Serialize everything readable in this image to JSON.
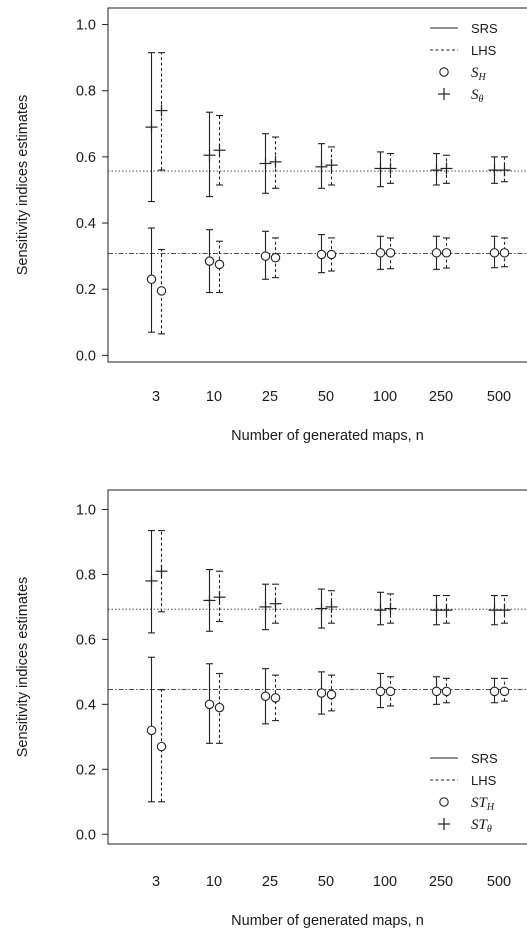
{
  "chart_data": [
    {
      "type": "errorbar",
      "xlabel": "Number of generated maps, n",
      "ylabel": "Sensitivity indices estimates",
      "categories": [
        "3",
        "10",
        "25",
        "50",
        "100",
        "250",
        "500"
      ],
      "ylim": [
        -0.02,
        1.05
      ],
      "yticks": [
        "0.0",
        "0.2",
        "0.4",
        "0.6",
        "0.8",
        "1.0"
      ],
      "reference_lines": [
        0.557,
        0.308
      ],
      "legend_position": "top-right",
      "legend": [
        {
          "symbol": "line",
          "label": "SRS"
        },
        {
          "symbol": "dash",
          "label": "LHS"
        },
        {
          "symbol": "circle",
          "label": "S",
          "sub": "H"
        },
        {
          "symbol": "plus",
          "label": "S",
          "sub": "θ"
        }
      ],
      "series": [
        {
          "index": "S_H",
          "method": "SRS",
          "marker": "circle",
          "mean": [
            0.23,
            0.285,
            0.3,
            0.305,
            0.31,
            0.31,
            0.31
          ],
          "lower": [
            0.07,
            0.19,
            0.23,
            0.25,
            0.26,
            0.26,
            0.265
          ],
          "upper": [
            0.385,
            0.38,
            0.375,
            0.365,
            0.36,
            0.36,
            0.36
          ]
        },
        {
          "index": "S_H",
          "method": "LHS",
          "marker": "circle",
          "mean": [
            0.195,
            0.275,
            0.295,
            0.305,
            0.31,
            0.31,
            0.31
          ],
          "lower": [
            0.065,
            0.19,
            0.235,
            0.255,
            0.262,
            0.264,
            0.268
          ],
          "upper": [
            0.32,
            0.345,
            0.355,
            0.355,
            0.355,
            0.355,
            0.355
          ]
        },
        {
          "index": "S_θ",
          "method": "SRS",
          "marker": "plus",
          "mean": [
            0.69,
            0.605,
            0.58,
            0.57,
            0.565,
            0.56,
            0.56
          ],
          "lower": [
            0.465,
            0.48,
            0.49,
            0.505,
            0.51,
            0.515,
            0.52
          ],
          "upper": [
            0.915,
            0.735,
            0.67,
            0.64,
            0.615,
            0.61,
            0.6
          ]
        },
        {
          "index": "S_θ",
          "method": "LHS",
          "marker": "plus",
          "mean": [
            0.74,
            0.62,
            0.585,
            0.575,
            0.565,
            0.565,
            0.56
          ],
          "lower": [
            0.56,
            0.515,
            0.505,
            0.515,
            0.52,
            0.52,
            0.525
          ],
          "upper": [
            0.915,
            0.725,
            0.66,
            0.63,
            0.61,
            0.605,
            0.6
          ]
        }
      ]
    },
    {
      "type": "errorbar",
      "xlabel": "Number of generated maps, n",
      "ylabel": "Sensitivity indices estimates",
      "categories": [
        "3",
        "10",
        "25",
        "50",
        "100",
        "250",
        "500"
      ],
      "ylim": [
        -0.03,
        1.06
      ],
      "yticks": [
        "0.0",
        "0.2",
        "0.4",
        "0.6",
        "0.8",
        "1.0"
      ],
      "reference_lines": [
        0.693,
        0.446
      ],
      "legend_position": "bottom-right",
      "legend": [
        {
          "symbol": "line",
          "label": "SRS"
        },
        {
          "symbol": "dash",
          "label": "LHS"
        },
        {
          "symbol": "circle",
          "label": "ST",
          "sub": "H"
        },
        {
          "symbol": "plus",
          "label": "ST",
          "sub": "θ"
        }
      ],
      "series": [
        {
          "index": "ST_H",
          "method": "SRS",
          "marker": "circle",
          "mean": [
            0.32,
            0.4,
            0.425,
            0.435,
            0.44,
            0.44,
            0.44
          ],
          "lower": [
            0.1,
            0.28,
            0.34,
            0.37,
            0.39,
            0.4,
            0.405
          ],
          "upper": [
            0.545,
            0.525,
            0.51,
            0.5,
            0.495,
            0.485,
            0.48
          ]
        },
        {
          "index": "ST_H",
          "method": "LHS",
          "marker": "circle",
          "mean": [
            0.27,
            0.39,
            0.42,
            0.43,
            0.44,
            0.44,
            0.44
          ],
          "lower": [
            0.1,
            0.28,
            0.35,
            0.38,
            0.395,
            0.405,
            0.41
          ],
          "upper": [
            0.445,
            0.495,
            0.49,
            0.49,
            0.485,
            0.48,
            0.48
          ]
        },
        {
          "index": "ST_θ",
          "method": "SRS",
          "marker": "plus",
          "mean": [
            0.78,
            0.72,
            0.7,
            0.695,
            0.69,
            0.69,
            0.69
          ],
          "lower": [
            0.62,
            0.625,
            0.63,
            0.635,
            0.645,
            0.645,
            0.645
          ],
          "upper": [
            0.935,
            0.815,
            0.77,
            0.755,
            0.745,
            0.735,
            0.735
          ]
        },
        {
          "index": "ST_θ",
          "method": "LHS",
          "marker": "plus",
          "mean": [
            0.81,
            0.73,
            0.71,
            0.7,
            0.695,
            0.69,
            0.69
          ],
          "lower": [
            0.685,
            0.655,
            0.65,
            0.65,
            0.65,
            0.65,
            0.65
          ],
          "upper": [
            0.935,
            0.81,
            0.77,
            0.75,
            0.74,
            0.735,
            0.735
          ]
        }
      ]
    }
  ]
}
